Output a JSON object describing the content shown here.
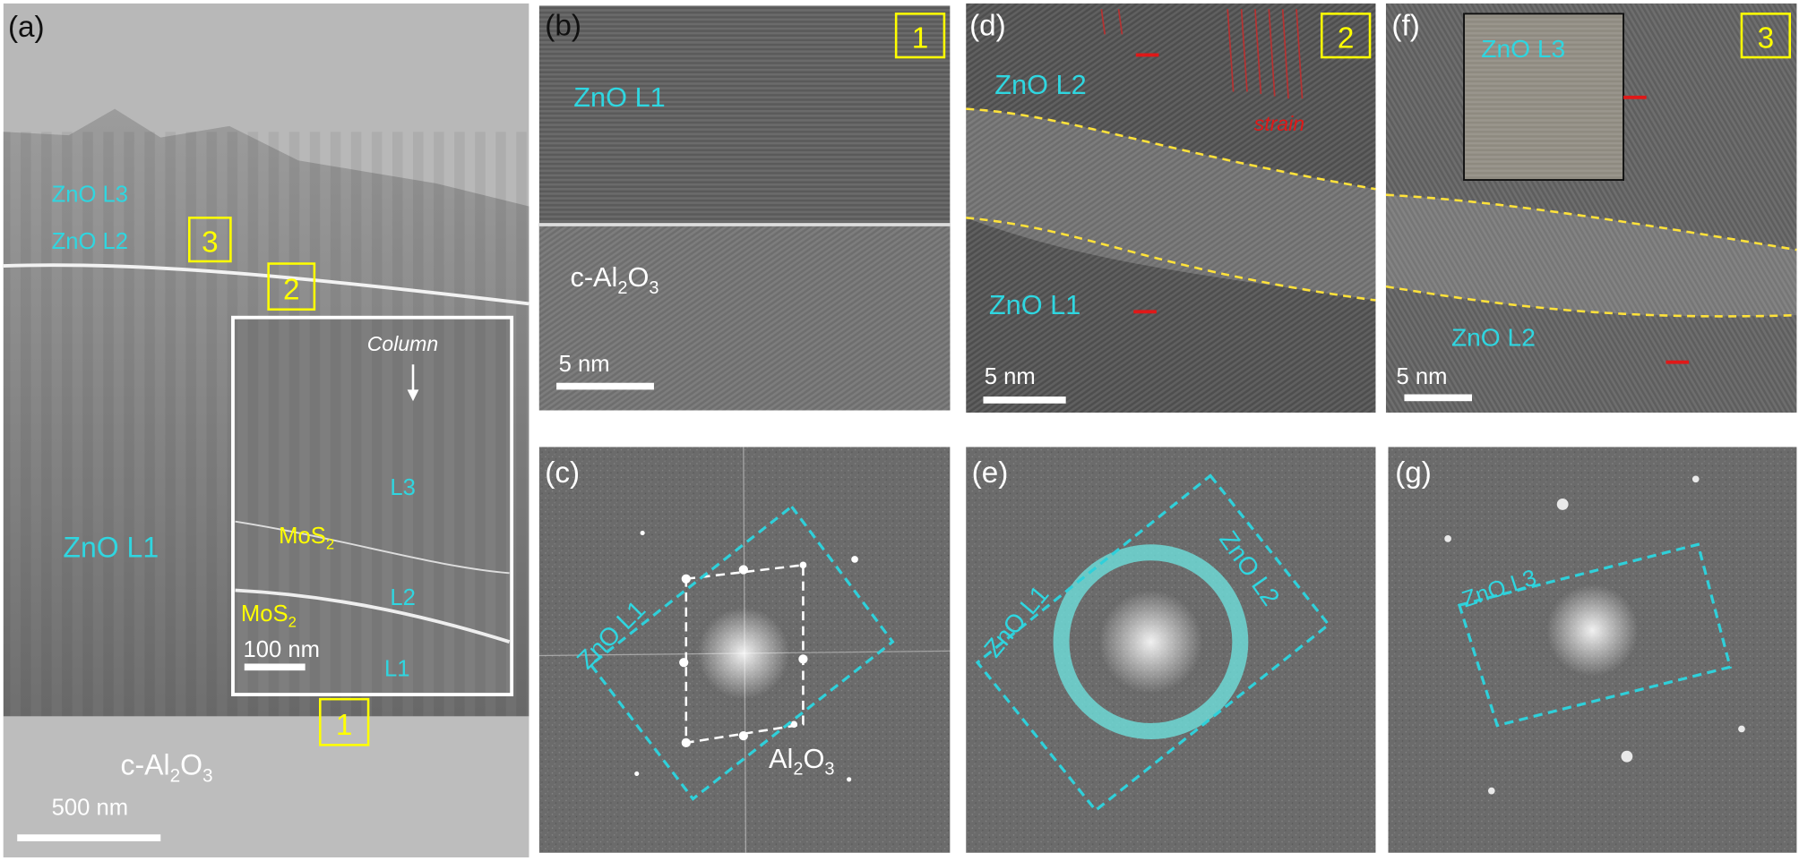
{
  "panels": [
    {
      "label": "(a)",
      "markers": [
        "3",
        "2",
        "1"
      ],
      "annotations": [
        [
          "ZnO L3"
        ],
        [
          "ZnO L2"
        ],
        [
          "ZnO L1"
        ],
        [
          "c-Al",
          "2",
          "O",
          "3"
        ]
      ],
      "scale_bar": "500 nm",
      "inset": {
        "annotations": [
          [
            "Column"
          ],
          [
            "L3"
          ],
          [
            "MoS",
            "2"
          ],
          [
            "L2"
          ],
          [
            "MoS",
            "2"
          ],
          [
            "L1"
          ]
        ],
        "scale_bar": "100 nm"
      }
    },
    {
      "label": "(b)",
      "markers": [
        "1"
      ],
      "annotations": [
        [
          "ZnO L1"
        ],
        [
          "c-Al",
          "2",
          "O",
          "3"
        ]
      ],
      "scale_bar": "5 nm"
    },
    {
      "label": "(c)",
      "annotations": [
        [
          "ZnO L1"
        ],
        [
          "Al",
          "2",
          "O",
          "3"
        ]
      ]
    },
    {
      "label": "(d)",
      "markers": [
        "2"
      ],
      "annotations": [
        [
          "ZnO L2"
        ],
        [
          "strain"
        ],
        [
          "ZnO L1"
        ]
      ],
      "scale_bar": "5 nm"
    },
    {
      "label": "(e)",
      "annotations": [
        [
          "ZnO L1"
        ],
        [
          "ZnO L2"
        ]
      ]
    },
    {
      "label": "(f)",
      "markers": [
        "3"
      ],
      "annotations": [
        [
          "ZnO L3"
        ],
        [
          "ZnO L2"
        ]
      ],
      "scale_bar": "5 nm"
    },
    {
      "label": "(g)",
      "annotations": [
        [
          "ZnO L3"
        ]
      ]
    }
  ]
}
